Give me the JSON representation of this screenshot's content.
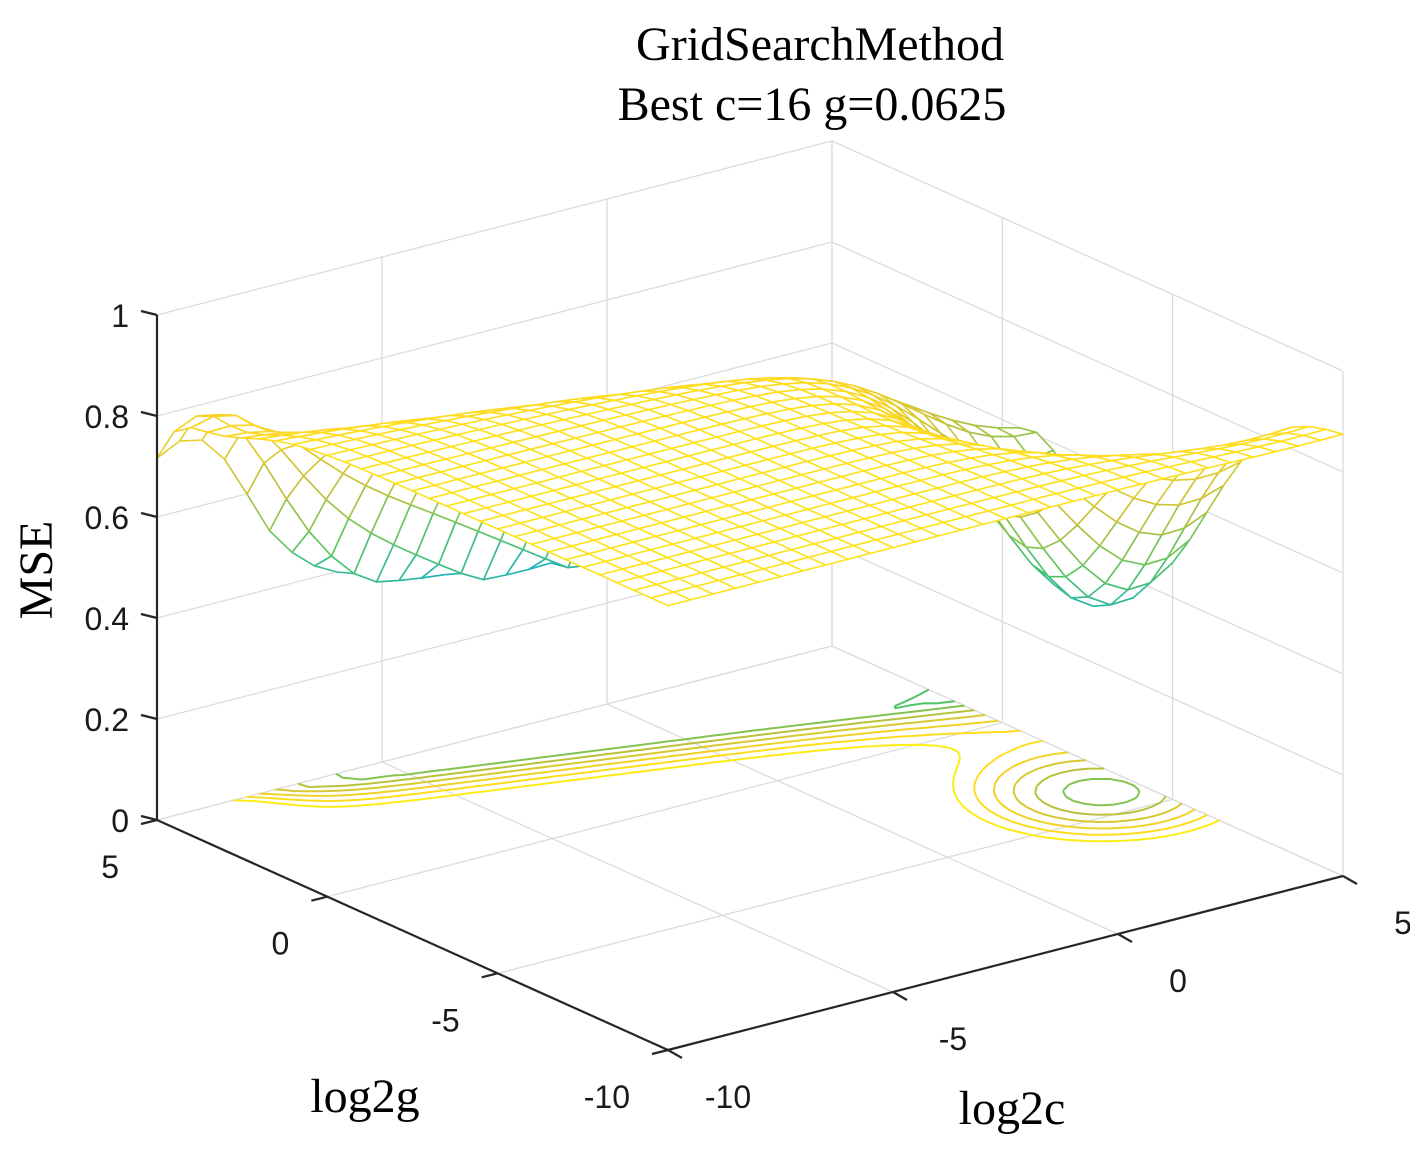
{
  "chart_data": {
    "type": "surface3d",
    "title": "GridSearchMethod",
    "subtitle": "Best c=16 g=0.0625",
    "xlabel": "log2c",
    "ylabel": "log2g",
    "zlabel": "MSE",
    "xlim": [
      -10,
      5
    ],
    "ylim": [
      -10,
      5
    ],
    "zlim": [
      0,
      1
    ],
    "x_ticks": [
      "-10",
      "-5",
      "0",
      "5"
    ],
    "y_ticks": [
      "-10",
      "-5",
      "0",
      "5"
    ],
    "z_ticks": [
      "0",
      "0.2",
      "0.4",
      "0.6",
      "0.8",
      "1"
    ],
    "grid": true,
    "colormap": "parula",
    "colormap_stops": [
      "#3e26a8",
      "#2f6cf4",
      "#13aecf",
      "#50c467",
      "#c9c236",
      "#ffd824",
      "#f9fb0e"
    ],
    "contour_levels": [
      0.05,
      0.1,
      0.15,
      0.2,
      0.25,
      0.3,
      0.35,
      0.4,
      0.45,
      0.5,
      0.55,
      0.6,
      0.65
    ],
    "best": {
      "c": 16,
      "g": 0.0625,
      "log2c": 4,
      "log2g": -4
    }
  }
}
